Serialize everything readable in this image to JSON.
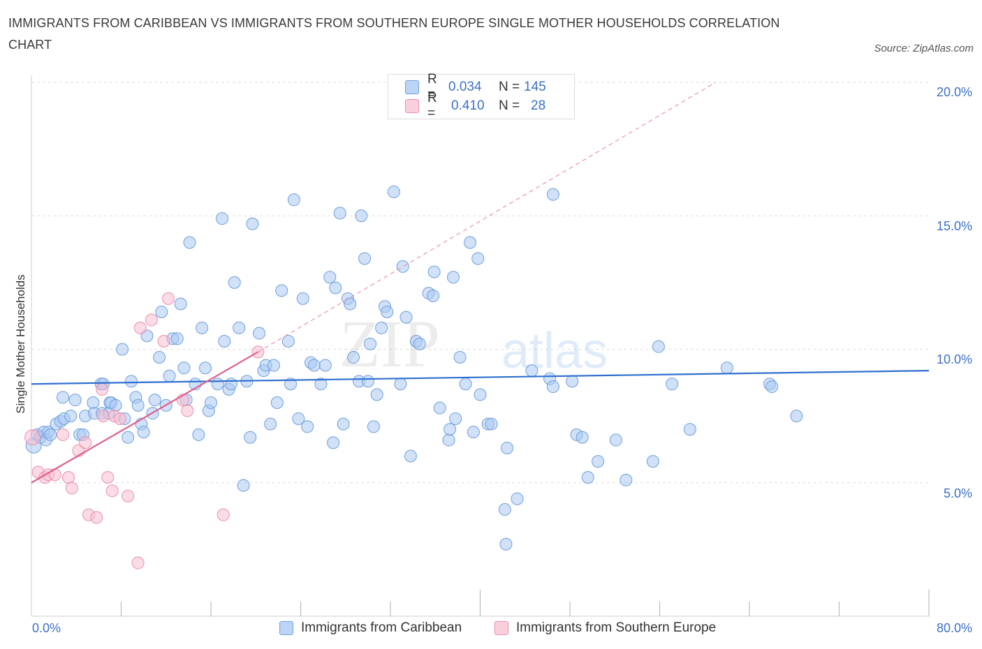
{
  "title": "IMMIGRANTS FROM CARIBBEAN VS IMMIGRANTS FROM SOUTHERN EUROPE SINGLE MOTHER HOUSEHOLDS CORRELATION CHART",
  "source": "Source: ZipAtlas.com",
  "watermark": {
    "zip": "ZIP",
    "atlas": "atlas"
  },
  "colors": {
    "blue_fill": "#a9c8f2",
    "blue_stroke": "#6e9fde",
    "blue_line": "#2f6fd0",
    "pink_fill": "#f7bdd0",
    "pink_stroke": "#ea8fad",
    "pink_line": "#e0608f",
    "grid": "#dddddd",
    "accent_text": "#3b70c8"
  },
  "legend_top": {
    "rows": [
      {
        "r_label": "R =",
        "r_value": "0.034",
        "n_label": "N =",
        "n_value": "145"
      },
      {
        "r_label": "R =",
        "r_value": "0.410",
        "n_label": "N =",
        "n_value": "28"
      }
    ]
  },
  "chart_data": {
    "type": "scatter",
    "title": "IMMIGRANTS FROM CARIBBEAN VS IMMIGRANTS FROM SOUTHERN EUROPE SINGLE MOTHER HOUSEHOLDS CORRELATION CHART",
    "xlabel": "",
    "ylabel": "Single Mother Households",
    "xlim": [
      0,
      80
    ],
    "ylim": [
      0,
      20
    ],
    "x_tick_labels": [
      "0.0%",
      "80.0%"
    ],
    "y_ticks": [
      5,
      10,
      15,
      20
    ],
    "y_tick_labels": [
      "5.0%",
      "10.0%",
      "15.0%",
      "20.0%"
    ],
    "grid": true,
    "legend_position": "bottom",
    "series": [
      {
        "name": "Immigrants from Caribbean",
        "color": "blue",
        "R": 0.034,
        "N": 145,
        "trend": {
          "x": [
            0,
            80
          ],
          "y": [
            8.7,
            9.2
          ]
        },
        "points": [
          [
            0.2,
            6.4
          ],
          [
            0.5,
            6.8
          ],
          [
            0.8,
            6.7
          ],
          [
            1.1,
            6.9
          ],
          [
            1.3,
            6.6
          ],
          [
            1.5,
            6.9
          ],
          [
            1.7,
            6.8
          ],
          [
            2.2,
            7.2
          ],
          [
            2.6,
            7.3
          ],
          [
            2.9,
            7.4
          ],
          [
            2.8,
            8.2
          ],
          [
            3.5,
            7.5
          ],
          [
            3.9,
            8.1
          ],
          [
            4.3,
            6.8
          ],
          [
            4.6,
            6.8
          ],
          [
            4.8,
            7.5
          ],
          [
            5.5,
            8.0
          ],
          [
            5.6,
            7.6
          ],
          [
            6.2,
            8.7
          ],
          [
            6.4,
            8.7
          ],
          [
            6.3,
            7.6
          ],
          [
            6.9,
            7.6
          ],
          [
            7.0,
            8.0
          ],
          [
            7.1,
            8.0
          ],
          [
            7.5,
            7.9
          ],
          [
            8.1,
            10.0
          ],
          [
            8.3,
            7.4
          ],
          [
            8.6,
            6.7
          ],
          [
            8.9,
            8.8
          ],
          [
            9.3,
            8.2
          ],
          [
            9.5,
            7.9
          ],
          [
            9.8,
            7.2
          ],
          [
            10.0,
            6.9
          ],
          [
            10.3,
            10.5
          ],
          [
            10.8,
            7.6
          ],
          [
            11.0,
            8.1
          ],
          [
            11.4,
            9.7
          ],
          [
            11.6,
            11.4
          ],
          [
            12.0,
            7.9
          ],
          [
            12.3,
            9.0
          ],
          [
            12.6,
            10.4
          ],
          [
            13.0,
            10.4
          ],
          [
            13.3,
            11.7
          ],
          [
            13.6,
            9.3
          ],
          [
            13.8,
            8.1
          ],
          [
            14.1,
            14.0
          ],
          [
            14.6,
            8.7
          ],
          [
            14.9,
            6.8
          ],
          [
            15.2,
            10.8
          ],
          [
            15.5,
            9.3
          ],
          [
            15.8,
            7.7
          ],
          [
            16.0,
            8.0
          ],
          [
            16.6,
            8.7
          ],
          [
            17.0,
            14.9
          ],
          [
            17.2,
            10.3
          ],
          [
            17.6,
            8.5
          ],
          [
            17.8,
            8.7
          ],
          [
            18.1,
            12.5
          ],
          [
            18.5,
            10.8
          ],
          [
            18.9,
            4.9
          ],
          [
            19.2,
            8.8
          ],
          [
            19.5,
            6.7
          ],
          [
            19.7,
            14.7
          ],
          [
            20.3,
            10.6
          ],
          [
            20.7,
            9.2
          ],
          [
            20.9,
            9.4
          ],
          [
            21.3,
            7.2
          ],
          [
            21.6,
            9.4
          ],
          [
            21.9,
            8.0
          ],
          [
            22.3,
            12.2
          ],
          [
            22.9,
            10.3
          ],
          [
            23.1,
            8.7
          ],
          [
            23.4,
            15.6
          ],
          [
            23.8,
            7.4
          ],
          [
            24.2,
            11.9
          ],
          [
            24.6,
            7.1
          ],
          [
            24.9,
            9.5
          ],
          [
            25.2,
            9.4
          ],
          [
            25.8,
            8.7
          ],
          [
            26.2,
            9.4
          ],
          [
            26.6,
            12.7
          ],
          [
            26.9,
            6.5
          ],
          [
            27.1,
            12.3
          ],
          [
            27.5,
            15.1
          ],
          [
            27.8,
            7.2
          ],
          [
            28.2,
            11.9
          ],
          [
            28.4,
            11.7
          ],
          [
            28.7,
            9.7
          ],
          [
            29.2,
            8.8
          ],
          [
            29.4,
            15.0
          ],
          [
            29.7,
            13.4
          ],
          [
            30.0,
            8.8
          ],
          [
            30.2,
            10.2
          ],
          [
            30.5,
            7.1
          ],
          [
            30.8,
            8.3
          ],
          [
            31.2,
            10.8
          ],
          [
            31.5,
            11.6
          ],
          [
            31.7,
            11.4
          ],
          [
            32.3,
            15.9
          ],
          [
            32.9,
            8.7
          ],
          [
            33.1,
            13.1
          ],
          [
            33.4,
            11.2
          ],
          [
            33.8,
            6.0
          ],
          [
            34.3,
            10.3
          ],
          [
            34.6,
            10.2
          ],
          [
            35.4,
            12.1
          ],
          [
            35.8,
            12.0
          ],
          [
            35.9,
            12.9
          ],
          [
            36.4,
            7.8
          ],
          [
            37.2,
            6.6
          ],
          [
            37.3,
            7.0
          ],
          [
            37.6,
            12.7
          ],
          [
            37.8,
            7.4
          ],
          [
            38.2,
            9.7
          ],
          [
            38.7,
            8.7
          ],
          [
            39.1,
            14.0
          ],
          [
            39.4,
            6.9
          ],
          [
            39.8,
            13.4
          ],
          [
            40.0,
            8.3
          ],
          [
            40.7,
            7.2
          ],
          [
            41.0,
            7.2
          ],
          [
            42.2,
            4.0
          ],
          [
            42.4,
            6.3
          ],
          [
            42.3,
            2.7
          ],
          [
            43.3,
            4.4
          ],
          [
            44.6,
            9.2
          ],
          [
            46.2,
            8.9
          ],
          [
            46.5,
            8.6
          ],
          [
            46.5,
            15.8
          ],
          [
            48.2,
            8.8
          ],
          [
            48.6,
            6.8
          ],
          [
            49.1,
            6.7
          ],
          [
            49.6,
            5.2
          ],
          [
            50.5,
            5.8
          ],
          [
            52.1,
            6.6
          ],
          [
            53.0,
            5.1
          ],
          [
            55.4,
            5.8
          ],
          [
            55.9,
            10.1
          ],
          [
            57.1,
            8.7
          ],
          [
            58.7,
            7.0
          ],
          [
            62.0,
            9.3
          ],
          [
            65.8,
            8.7
          ],
          [
            66.0,
            8.6
          ],
          [
            68.2,
            7.5
          ]
        ]
      },
      {
        "name": "Immigrants from Southern Europe",
        "color": "pink",
        "R": 0.41,
        "N": 28,
        "trend": {
          "x": [
            0,
            20.2
          ],
          "y": [
            5.0,
            9.9
          ]
        },
        "trend_extended": {
          "x": [
            20.2,
            61.0
          ],
          "y": [
            9.9,
            20.0
          ]
        },
        "points": [
          [
            0.1,
            6.7
          ],
          [
            0.6,
            5.4
          ],
          [
            1.2,
            5.2
          ],
          [
            1.5,
            5.3
          ],
          [
            2.1,
            5.3
          ],
          [
            2.8,
            6.8
          ],
          [
            3.3,
            5.2
          ],
          [
            3.6,
            4.8
          ],
          [
            4.2,
            6.2
          ],
          [
            4.8,
            6.5
          ],
          [
            5.1,
            3.8
          ],
          [
            5.8,
            3.7
          ],
          [
            6.3,
            8.5
          ],
          [
            6.4,
            7.5
          ],
          [
            6.8,
            5.2
          ],
          [
            7.2,
            4.7
          ],
          [
            7.4,
            7.5
          ],
          [
            7.9,
            7.4
          ],
          [
            8.6,
            4.5
          ],
          [
            9.5,
            2.0
          ],
          [
            9.7,
            10.8
          ],
          [
            10.7,
            11.1
          ],
          [
            11.8,
            10.3
          ],
          [
            12.2,
            11.9
          ],
          [
            13.5,
            8.1
          ],
          [
            13.9,
            7.7
          ],
          [
            17.1,
            3.8
          ],
          [
            20.2,
            9.9
          ]
        ]
      }
    ]
  },
  "legend_bottom": {
    "items": [
      {
        "label": "Immigrants from Caribbean"
      },
      {
        "label": "Immigrants from Southern Europe"
      }
    ]
  }
}
